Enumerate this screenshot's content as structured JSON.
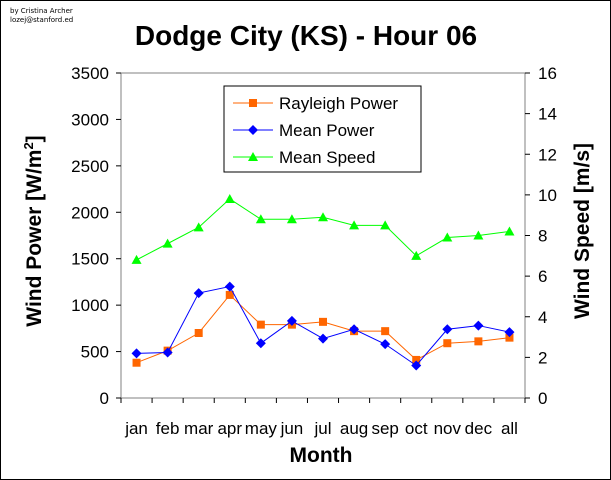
{
  "credit": [
    "by Cristina Archer",
    "lozej@stanford.ed"
  ],
  "chart_data": {
    "type": "line",
    "title": "Dodge City (KS) - Hour 06",
    "xlabel": "Month",
    "ylabel": "Wind Power [W/m",
    "ylabel_sup": "2",
    "ylabel_end": "]",
    "y2label": "Wind Speed [m/s]",
    "categories": [
      "jan",
      "feb",
      "mar",
      "apr",
      "may",
      "jun",
      "jul",
      "aug",
      "sep",
      "oct",
      "nov",
      "dec",
      "all"
    ],
    "ylim": [
      0,
      3500
    ],
    "yticks": [
      0,
      500,
      1000,
      1500,
      2000,
      2500,
      3000,
      3500
    ],
    "y2lim": [
      0,
      16
    ],
    "y2ticks": [
      0,
      2,
      4,
      6,
      8,
      10,
      12,
      14,
      16
    ],
    "grid": false,
    "legend_position": "top-center",
    "series": [
      {
        "name": "Rayleigh Power",
        "axis": "left",
        "color": "#FF6600",
        "marker": "square",
        "values": [
          380,
          510,
          700,
          1110,
          790,
          790,
          820,
          720,
          720,
          410,
          590,
          610,
          650
        ]
      },
      {
        "name": "Mean Power",
        "axis": "left",
        "color": "#0000FF",
        "marker": "diamond",
        "values": [
          480,
          490,
          1130,
          1200,
          590,
          830,
          640,
          740,
          580,
          350,
          740,
          780,
          710
        ]
      },
      {
        "name": "Mean Speed",
        "axis": "right",
        "color": "#00FF00",
        "marker": "triangle",
        "values": [
          6.8,
          7.6,
          8.4,
          9.8,
          8.8,
          8.8,
          8.9,
          8.5,
          8.5,
          7.0,
          7.9,
          8.0,
          8.2
        ]
      }
    ]
  }
}
